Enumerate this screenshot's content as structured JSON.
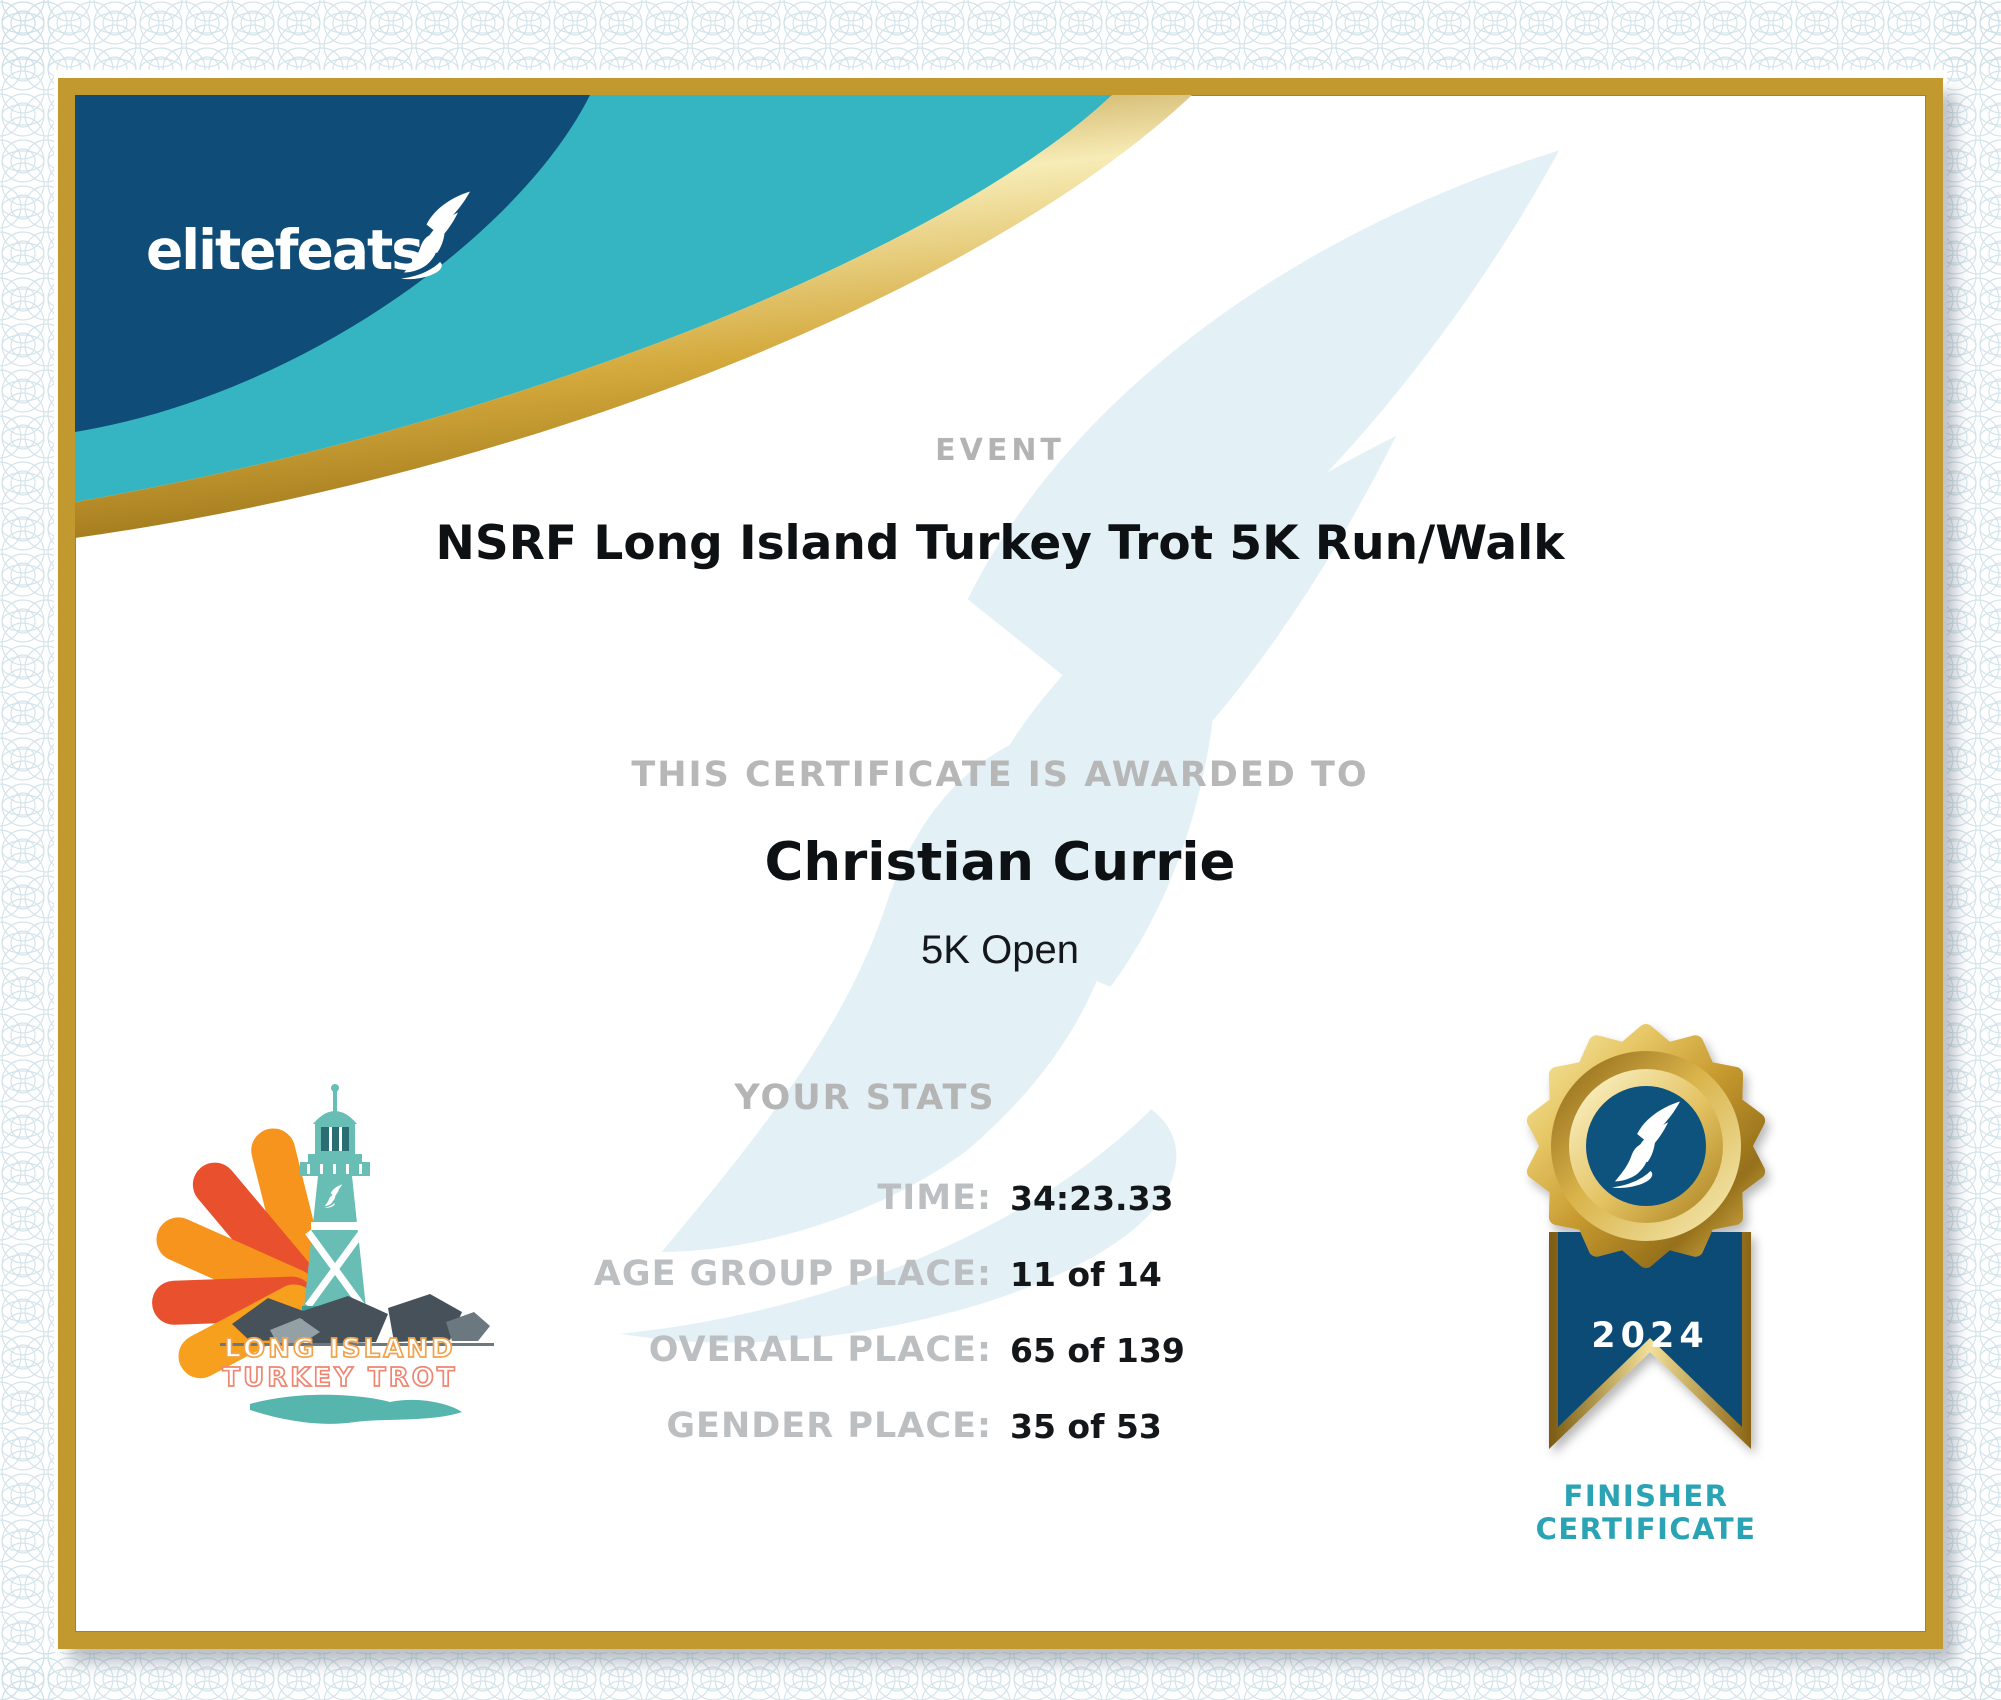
{
  "brand": {
    "logo_text": "elitefeats",
    "logo_icon": "winged-foot-icon"
  },
  "event": {
    "label": "EVENT",
    "title": "NSRF Long Island Turkey Trot 5K Run/Walk"
  },
  "award": {
    "heading": "THIS CERTIFICATE IS AWARDED TO",
    "recipient": "Christian Currie",
    "division": "5K Open"
  },
  "stats": {
    "heading": "YOUR STATS",
    "rows": [
      {
        "label": "TIME:",
        "value": "34:23.33"
      },
      {
        "label": "AGE GROUP PLACE:",
        "value": "11 of 14"
      },
      {
        "label": "OVERALL PLACE:",
        "value": "65 of 139"
      },
      {
        "label": "GENDER PLACE:",
        "value": "35 of 53"
      }
    ]
  },
  "badge": {
    "year": "2024",
    "caption_line1": "FINISHER",
    "caption_line2": "CERTIFICATE",
    "icon": "winged-foot-icon"
  },
  "event_logo": {
    "line1": "LONG ISLAND",
    "line2": "TURKEY TROT",
    "icon": "lighthouse-turkey-icon"
  },
  "colors": {
    "navy": "#0f4c77",
    "teal": "#35b5c1",
    "frame_gold": "#c2992e",
    "badge_text_teal": "#2aa3b4",
    "label_gray": "#b7b7b7",
    "feather_orange": "#f7941d",
    "feather_red": "#e8502e",
    "lighthouse_teal": "#68bdb5",
    "watermark_blue": "#e3f1f7"
  }
}
